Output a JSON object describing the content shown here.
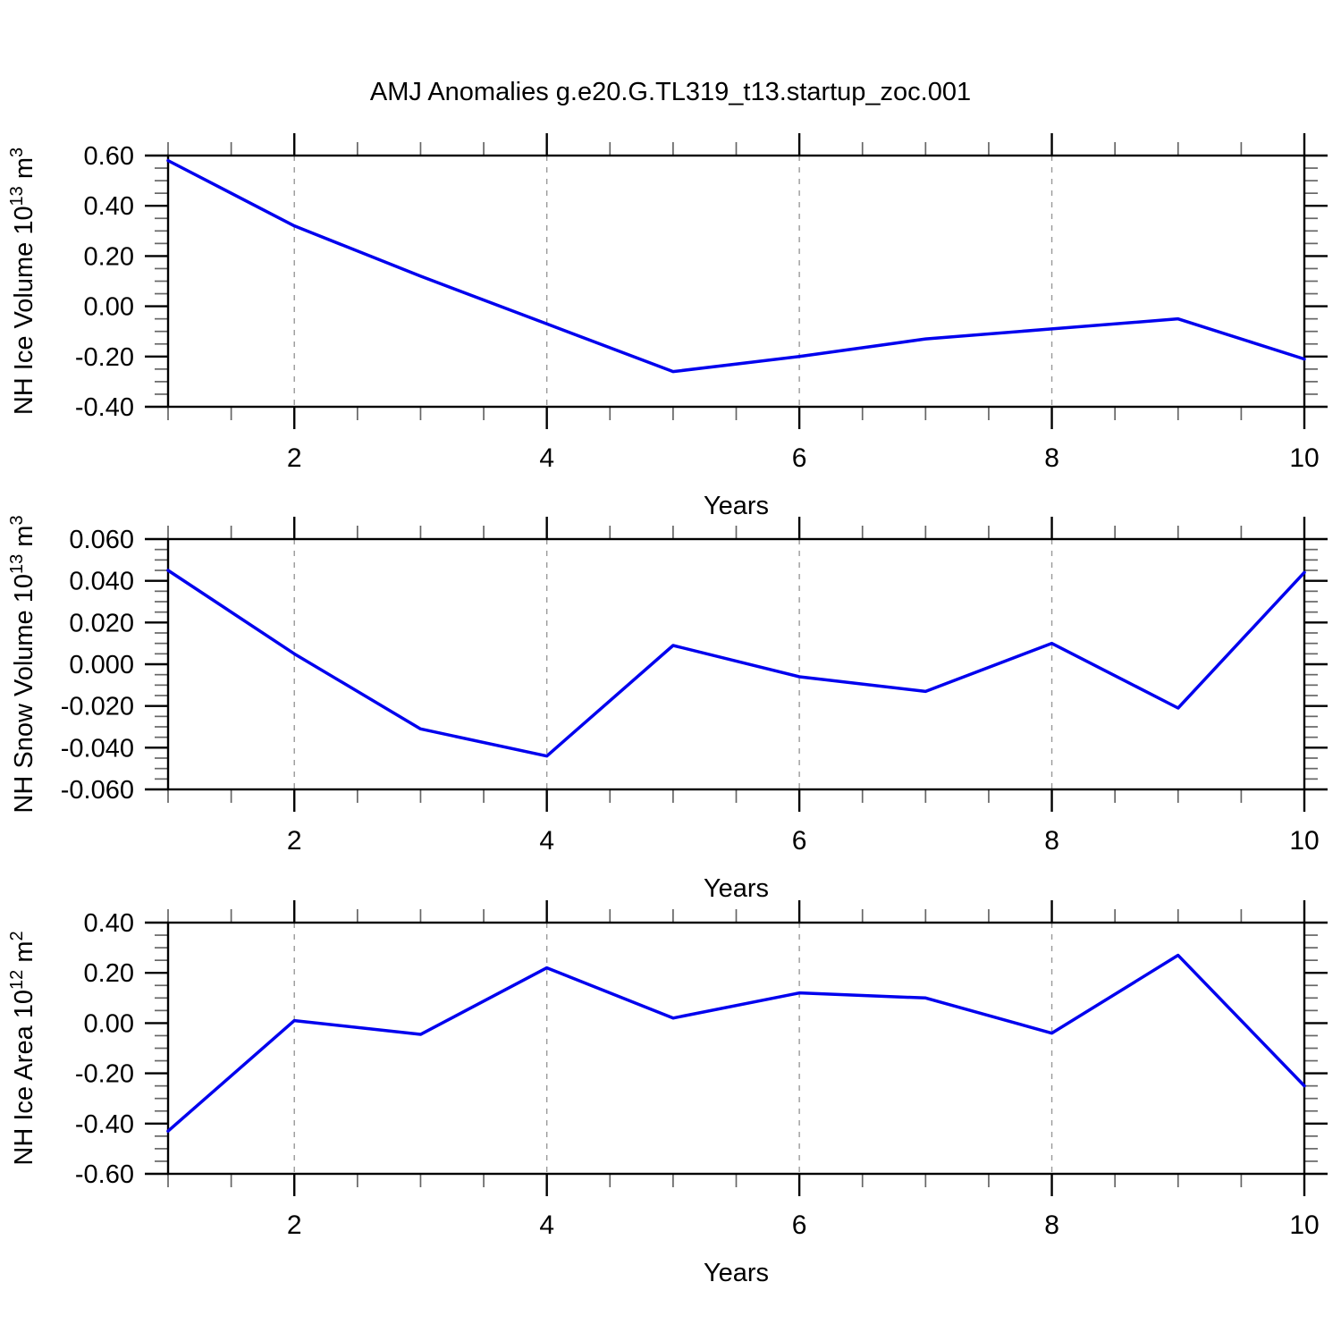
{
  "title": "AMJ Anomalies g.e20.G.TL319_t13.startup_zoc.001",
  "colors": {
    "line": "#0000EE",
    "grid": "#999999",
    "axis": "#000000",
    "minor_tick": "#666666",
    "background": "#FFFFFF"
  },
  "chart_data": [
    {
      "id": "nh-ice-volume",
      "type": "line",
      "title": "",
      "x": [
        1,
        2,
        3,
        4,
        5,
        6,
        7,
        8,
        9,
        10
      ],
      "values": [
        0.58,
        0.32,
        0.12,
        -0.07,
        -0.26,
        -0.2,
        -0.13,
        -0.09,
        -0.05,
        -0.21
      ],
      "ylabel": "NH Ice Volume 10^13 m^3",
      "ylabel_parts": [
        {
          "t": "NH Ice Volume 10"
        },
        {
          "t": "13",
          "sup": true
        },
        {
          "t": " m"
        },
        {
          "t": "3",
          "sup": true
        }
      ],
      "xlabel": "Years",
      "xlim": [
        1,
        10
      ],
      "ylim": [
        -0.4,
        0.6
      ],
      "yticks": [
        {
          "v": 0.6,
          "label": "0.60"
        },
        {
          "v": 0.4,
          "label": "0.40"
        },
        {
          "v": 0.2,
          "label": "0.20"
        },
        {
          "v": 0.0,
          "label": "0.00"
        },
        {
          "v": -0.2,
          "label": "-0.20"
        },
        {
          "v": -0.4,
          "label": "-0.40"
        }
      ],
      "yminor_step": 0.05,
      "xticks": [
        {
          "v": 2,
          "label": "2"
        },
        {
          "v": 4,
          "label": "4"
        },
        {
          "v": 6,
          "label": "6"
        },
        {
          "v": 8,
          "label": "8"
        },
        {
          "v": 10,
          "label": "10"
        }
      ],
      "xminor_step": 0.5,
      "grid_x": [
        2,
        4,
        6,
        8
      ],
      "grid": "vertical-dashed",
      "legend": "none"
    },
    {
      "id": "nh-snow-volume",
      "type": "line",
      "title": "",
      "x": [
        1,
        2,
        3,
        4,
        5,
        6,
        7,
        8,
        9,
        10
      ],
      "values": [
        0.045,
        0.005,
        -0.031,
        -0.044,
        0.009,
        -0.006,
        -0.013,
        0.01,
        -0.021,
        0.044
      ],
      "ylabel": "NH Snow Volume 10^13 m^3",
      "ylabel_parts": [
        {
          "t": "NH Snow Volume 10"
        },
        {
          "t": "13",
          "sup": true
        },
        {
          "t": " m"
        },
        {
          "t": "3",
          "sup": true
        }
      ],
      "xlabel": "Years",
      "xlim": [
        1,
        10
      ],
      "ylim": [
        -0.06,
        0.06
      ],
      "yticks": [
        {
          "v": 0.06,
          "label": "0.060"
        },
        {
          "v": 0.04,
          "label": "0.040"
        },
        {
          "v": 0.02,
          "label": "0.020"
        },
        {
          "v": 0.0,
          "label": "0.000"
        },
        {
          "v": -0.02,
          "label": "-0.020"
        },
        {
          "v": -0.04,
          "label": "-0.040"
        },
        {
          "v": -0.06,
          "label": "-0.060"
        }
      ],
      "yminor_step": 0.005,
      "xticks": [
        {
          "v": 2,
          "label": "2"
        },
        {
          "v": 4,
          "label": "4"
        },
        {
          "v": 6,
          "label": "6"
        },
        {
          "v": 8,
          "label": "8"
        },
        {
          "v": 10,
          "label": "10"
        }
      ],
      "xminor_step": 0.5,
      "grid_x": [
        2,
        4,
        6,
        8
      ],
      "grid": "vertical-dashed",
      "legend": "none"
    },
    {
      "id": "nh-ice-area",
      "type": "line",
      "title": "",
      "x": [
        1,
        2,
        3,
        4,
        5,
        6,
        7,
        8,
        9,
        10
      ],
      "values": [
        -0.43,
        0.01,
        -0.045,
        0.22,
        0.02,
        0.12,
        0.1,
        -0.04,
        0.27,
        -0.25
      ],
      "ylabel": "NH Ice Area 10^12 m^2",
      "ylabel_parts": [
        {
          "t": "NH Ice Area 10"
        },
        {
          "t": "12",
          "sup": true
        },
        {
          "t": " m"
        },
        {
          "t": "2",
          "sup": true
        }
      ],
      "xlabel": "Years",
      "xlim": [
        1,
        10
      ],
      "ylim": [
        -0.6,
        0.4
      ],
      "yticks": [
        {
          "v": 0.4,
          "label": "0.40"
        },
        {
          "v": 0.2,
          "label": "0.20"
        },
        {
          "v": 0.0,
          "label": "0.00"
        },
        {
          "v": -0.2,
          "label": "-0.20"
        },
        {
          "v": -0.4,
          "label": "-0.40"
        },
        {
          "v": -0.6,
          "label": "-0.60"
        }
      ],
      "yminor_step": 0.05,
      "xticks": [
        {
          "v": 2,
          "label": "2"
        },
        {
          "v": 4,
          "label": "4"
        },
        {
          "v": 6,
          "label": "6"
        },
        {
          "v": 8,
          "label": "8"
        },
        {
          "v": 10,
          "label": "10"
        }
      ],
      "xminor_step": 0.5,
      "grid_x": [
        2,
        4,
        6,
        8
      ],
      "grid": "vertical-dashed",
      "legend": "none"
    }
  ]
}
